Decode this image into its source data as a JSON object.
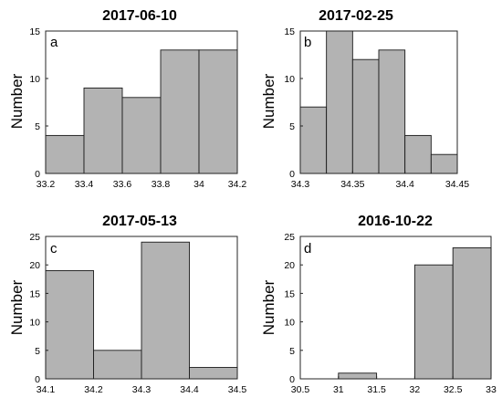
{
  "chart_data": [
    {
      "type": "histogram",
      "panel_letter": "a",
      "title": "2017-06-10",
      "ylabel": "Number",
      "xlabel": "",
      "bin_edges": [
        33.2,
        33.4,
        33.6,
        33.8,
        34.0,
        34.2
      ],
      "values": [
        4,
        9,
        8,
        13,
        13
      ],
      "xlim": [
        33.2,
        34.2
      ],
      "ylim": [
        0,
        15
      ],
      "xticks": [
        33.2,
        33.4,
        33.6,
        33.8,
        34,
        34.2
      ],
      "xtick_labels": [
        "33.2",
        "33.4",
        "33.6",
        "33.8",
        "34",
        "34.2"
      ],
      "yticks": [
        0,
        5,
        10,
        15
      ],
      "ytick_labels": [
        "0",
        "5",
        "10",
        "15"
      ]
    },
    {
      "type": "histogram",
      "panel_letter": "b",
      "title": "2017-02-25",
      "ylabel": "Number",
      "xlabel": "",
      "bin_edges": [
        34.3,
        34.325,
        34.35,
        34.375,
        34.4,
        34.425,
        34.45
      ],
      "values": [
        7,
        15,
        12,
        13,
        4,
        2
      ],
      "xlim": [
        34.3,
        34.45
      ],
      "ylim": [
        0,
        15
      ],
      "xticks": [
        34.3,
        34.35,
        34.4,
        34.45
      ],
      "xtick_labels": [
        "34.3",
        "34.35",
        "34.4",
        "34.45"
      ],
      "yticks": [
        0,
        5,
        10,
        15
      ],
      "ytick_labels": [
        "0",
        "5",
        "10",
        "15"
      ]
    },
    {
      "type": "histogram",
      "panel_letter": "c",
      "title": "2017-05-13",
      "ylabel": "Number",
      "xlabel": "",
      "bin_edges": [
        34.1,
        34.2,
        34.3,
        34.4,
        34.5
      ],
      "values": [
        19,
        5,
        24,
        2
      ],
      "xlim": [
        34.1,
        34.5
      ],
      "ylim": [
        0,
        25
      ],
      "xticks": [
        34.1,
        34.2,
        34.3,
        34.4,
        34.5
      ],
      "xtick_labels": [
        "34.1",
        "34.2",
        "34.3",
        "34.4",
        "34.5"
      ],
      "yticks": [
        0,
        5,
        10,
        15,
        20,
        25
      ],
      "ytick_labels": [
        "0",
        "5",
        "10",
        "15",
        "20",
        "25"
      ]
    },
    {
      "type": "histogram",
      "panel_letter": "d",
      "title": "2016-10-22",
      "ylabel": "Number",
      "xlabel": "",
      "bin_edges": [
        30.5,
        31.0,
        31.5,
        32.0,
        32.5,
        33.0
      ],
      "values": [
        0,
        1,
        0,
        20,
        23
      ],
      "xlim": [
        30.5,
        33
      ],
      "ylim": [
        0,
        25
      ],
      "xticks": [
        30.5,
        31,
        31.5,
        32,
        32.5,
        33
      ],
      "xtick_labels": [
        "30.5",
        "31",
        "31.5",
        "32",
        "32.5",
        "33"
      ],
      "yticks": [
        0,
        5,
        10,
        15,
        20,
        25
      ],
      "ytick_labels": [
        "0",
        "5",
        "10",
        "15",
        "20",
        "25"
      ]
    }
  ],
  "colors": {
    "bar_fill": "#b3b3b3",
    "bar_edge": "#1a1a1a",
    "axes": "#262626",
    "background": "#ffffff"
  }
}
